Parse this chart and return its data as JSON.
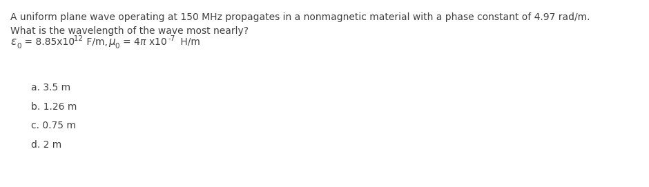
{
  "background_color": "#ffffff",
  "line1": "A uniform plane wave operating at 150 MHz propagates in a nonmagnetic material with a phase constant of 4.97 rad/m.",
  "line2": "What is the wavelength of the wave most nearly?",
  "choices": [
    "a. 3.5 m",
    "b. 1.26 m",
    "c. 0.75 m",
    "d. 2 m"
  ],
  "text_color": "#404040",
  "font_size_main": 10.0,
  "font_size_choices": 10.0,
  "font_size_super": 7.5,
  "font_size_sub": 7.5,
  "fig_width": 9.4,
  "fig_height": 2.71,
  "dpi": 100
}
